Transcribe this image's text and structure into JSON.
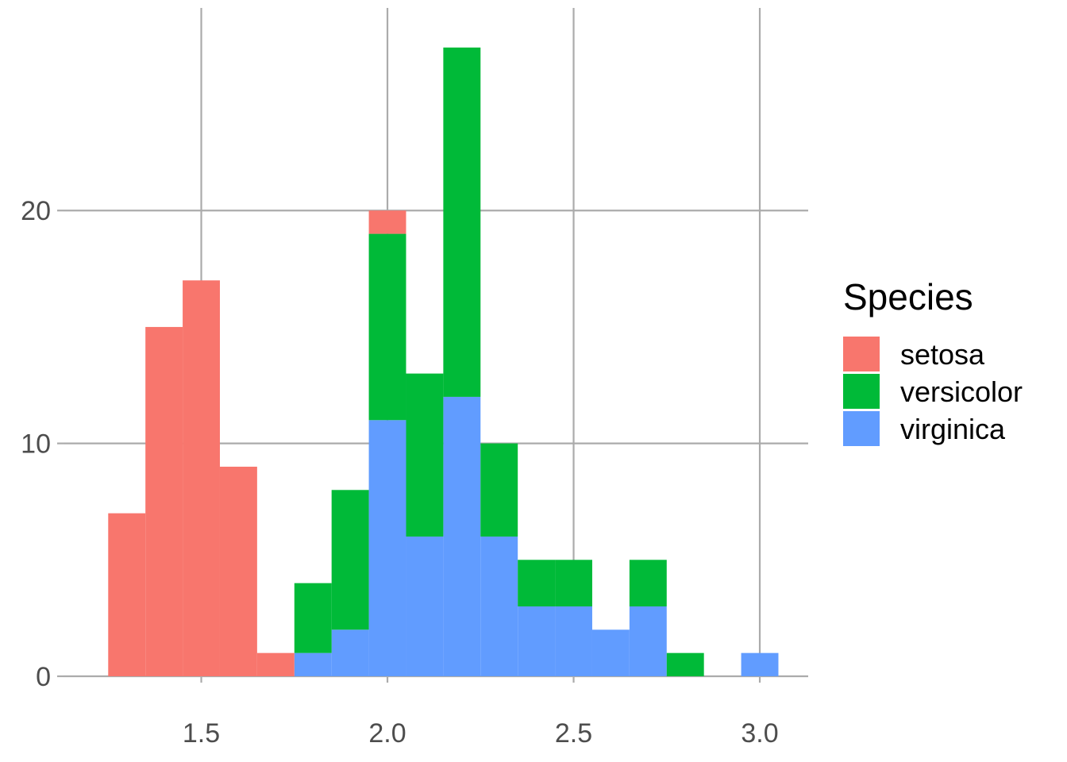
{
  "chart_data": {
    "type": "bar",
    "subtype": "stacked-histogram",
    "title": "",
    "xlabel": "",
    "ylabel": "",
    "xlim": [
      1.13,
      3.13
    ],
    "ylim": [
      0,
      28.7
    ],
    "x_ticks": [
      "1.5",
      "2.0",
      "2.5",
      "3.0"
    ],
    "y_ticks": [
      "0",
      "10",
      "20"
    ],
    "grid": true,
    "bin_width": 0.1,
    "bin_centers": [
      1.3,
      1.4,
      1.5,
      1.6,
      1.7,
      1.8,
      1.9,
      2.0,
      2.1,
      2.2,
      2.3,
      2.4,
      2.5,
      2.6,
      2.7,
      2.8,
      2.9,
      3.0
    ],
    "series": [
      {
        "name": "virginica",
        "color": "#619CFF",
        "values": [
          0,
          0,
          0,
          0,
          0,
          1,
          2,
          11,
          6,
          12,
          6,
          3,
          3,
          2,
          3,
          0,
          0,
          1
        ]
      },
      {
        "name": "versicolor",
        "color": "#00BA38",
        "values": [
          0,
          0,
          0,
          0,
          0,
          3,
          6,
          8,
          7,
          15,
          4,
          2,
          2,
          0,
          2,
          1,
          0,
          0
        ]
      },
      {
        "name": "setosa",
        "color": "#F8766D",
        "values": [
          7,
          15,
          17,
          9,
          1,
          0,
          0,
          1,
          0,
          0,
          0,
          0,
          0,
          0,
          0,
          0,
          0,
          0
        ]
      }
    ],
    "legend": {
      "title": "Species",
      "position": "right",
      "entries": [
        {
          "label": "setosa",
          "color": "#F8766D"
        },
        {
          "label": "versicolor",
          "color": "#00BA38"
        },
        {
          "label": "virginica",
          "color": "#619CFF"
        }
      ]
    }
  }
}
